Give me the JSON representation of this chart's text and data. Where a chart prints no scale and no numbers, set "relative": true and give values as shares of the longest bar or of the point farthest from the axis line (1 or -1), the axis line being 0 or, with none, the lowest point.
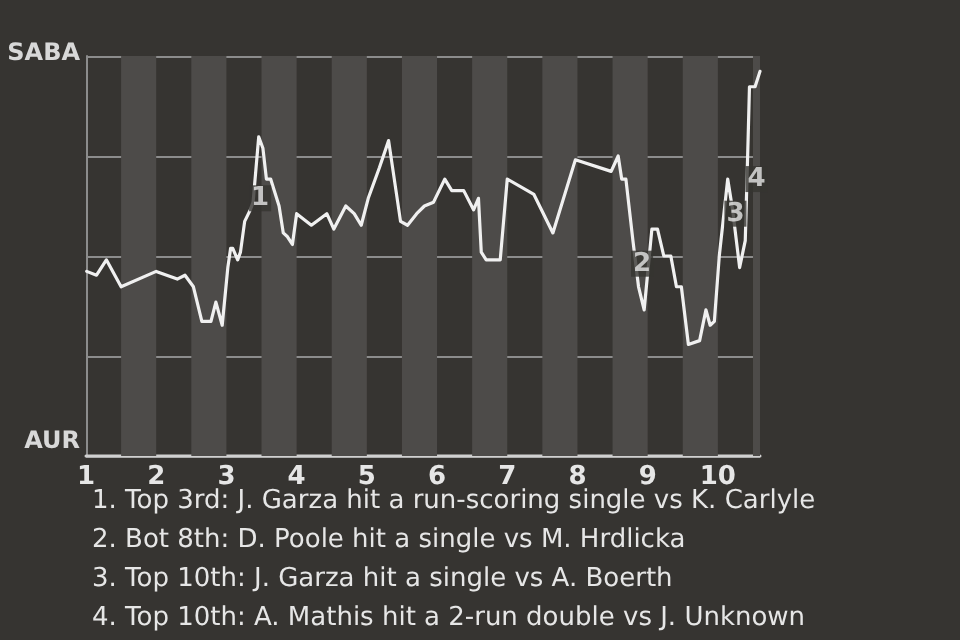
{
  "chart_data": {
    "type": "line",
    "relative": true,
    "x": [
      1.01,
      1.15,
      1.29,
      1.5,
      2.0,
      2.3,
      2.41,
      2.53,
      2.65,
      2.78,
      2.85,
      2.94,
      3.02,
      3.06,
      3.09,
      3.16,
      3.2,
      3.26,
      3.34,
      3.38,
      3.46,
      3.52,
      3.57,
      3.63,
      3.75,
      3.81,
      3.87,
      3.94,
      4.0,
      4.21,
      4.43,
      4.53,
      4.7,
      4.82,
      4.92,
      5.02,
      5.18,
      5.31,
      5.48,
      5.58,
      5.71,
      5.82,
      5.95,
      6.11,
      6.21,
      6.38,
      6.52,
      6.59,
      6.63,
      6.7,
      6.9,
      7.0,
      7.38,
      7.65,
      7.97,
      8.48,
      8.58,
      8.63,
      8.69,
      8.79,
      8.87,
      8.95,
      9.06,
      9.14,
      9.23,
      9.33,
      9.41,
      9.48,
      9.58,
      9.74,
      9.83,
      9.89,
      9.95,
      10.02,
      10.14,
      10.21,
      10.31,
      10.39,
      10.43,
      10.45,
      10.53,
      10.6
    ],
    "series": [
      {
        "color": "#f0f0f0",
        "values": [
          0.48,
          0.47,
          0.51,
          0.44,
          0.48,
          0.46,
          0.47,
          0.44,
          0.35,
          0.35,
          0.4,
          0.34,
          0.49,
          0.54,
          0.54,
          0.51,
          0.53,
          0.61,
          0.64,
          0.66,
          0.83,
          0.8,
          0.72,
          0.72,
          0.65,
          0.58,
          0.57,
          0.55,
          0.63,
          0.6,
          0.63,
          0.59,
          0.65,
          0.63,
          0.6,
          0.67,
          0.75,
          0.82,
          0.61,
          0.6,
          0.63,
          0.65,
          0.66,
          0.72,
          0.69,
          0.69,
          0.64,
          0.67,
          0.53,
          0.51,
          0.51,
          0.72,
          0.68,
          0.58,
          0.77,
          0.74,
          0.78,
          0.72,
          0.72,
          0.56,
          0.44,
          0.38,
          0.59,
          0.59,
          0.52,
          0.52,
          0.44,
          0.44,
          0.29,
          0.3,
          0.38,
          0.34,
          0.35,
          0.52,
          0.72,
          0.64,
          0.49,
          0.56,
          0.82,
          0.96,
          0.96,
          1
        ]
      }
    ],
    "xlim": [
      1,
      10.6
    ],
    "xticks": [
      1,
      2,
      3,
      4,
      5,
      6,
      7,
      8,
      9,
      10
    ],
    "grid": "y",
    "marker": "none",
    "line_style": "solid",
    "bands": [
      {
        "axis": "x",
        "from": 1.5,
        "to": 2,
        "color": "#4d4b49"
      },
      {
        "axis": "x",
        "from": 2.5,
        "to": 3,
        "color": "#4d4b49"
      },
      {
        "axis": "x",
        "from": 3.5,
        "to": 4,
        "color": "#4d4b49"
      },
      {
        "axis": "x",
        "from": 4.5,
        "to": 5,
        "color": "#4d4b49"
      },
      {
        "axis": "x",
        "from": 5.5,
        "to": 6,
        "color": "#4d4b49"
      },
      {
        "axis": "x",
        "from": 6.5,
        "to": 7,
        "color": "#4d4b49"
      },
      {
        "axis": "x",
        "from": 7.5,
        "to": 8,
        "color": "#4d4b49"
      },
      {
        "axis": "x",
        "from": 8.5,
        "to": 9,
        "color": "#4d4b49"
      },
      {
        "axis": "x",
        "from": 9.5,
        "to": 10,
        "color": "#4d4b49"
      },
      {
        "axis": "x",
        "from": 10.5,
        "to": 10.6,
        "color": "#4d4b49"
      }
    ],
    "annotations": [
      "SABA",
      "AUR",
      {
        "text": "1",
        "x": 3.48,
        "y": 0.67
      },
      {
        "text": "2",
        "x": 8.92,
        "y": 0.5
      },
      {
        "text": "3",
        "x": 10.25,
        "y": 0.63
      },
      {
        "text": "4",
        "x": 10.55,
        "y": 0.72
      },
      "1. Top 3rd: J. Garza hit a run-scoring single vs K. Carlyle",
      "2. Bot 8th: D. Poole hit a single vs M. Hrdlicka",
      "3. Top 10th: J. Garza hit a single vs A. Boerth",
      "4. Top 10th: A. Mathis hit a 2-run double vs J. Unknown"
    ]
  }
}
